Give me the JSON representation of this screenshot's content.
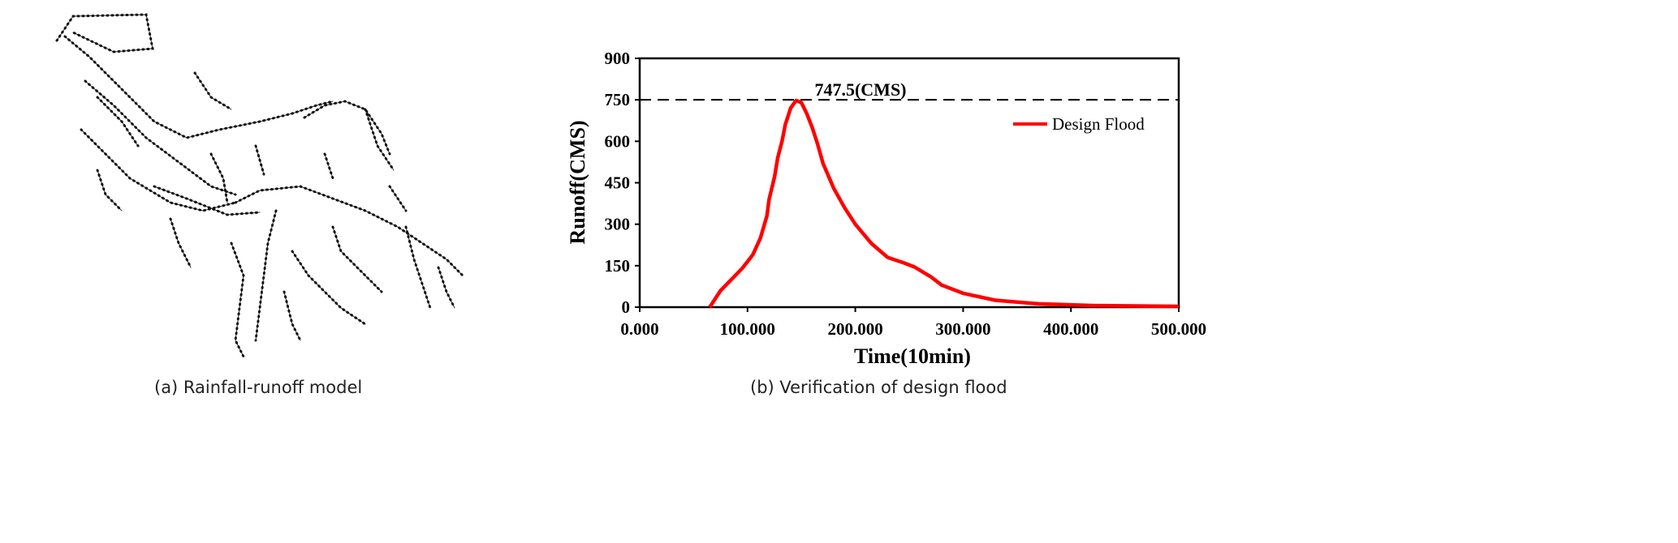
{
  "captions": {
    "left": "(a) Rainfall-runoff model",
    "right": "(b) Verification of design flood"
  },
  "network_diagram": {
    "color": "#111111"
  },
  "chart_data": {
    "type": "line",
    "xlabel": "Time(10min)",
    "ylabel": "Runoff(CMS)",
    "xlim": [
      0,
      500
    ],
    "ylim": [
      0,
      900
    ],
    "xticks": [
      "0.000",
      "100.000",
      "200.000",
      "300.000",
      "400.000",
      "500.000"
    ],
    "yticks": [
      "0",
      "150",
      "300",
      "450",
      "600",
      "750",
      "900"
    ],
    "grid": false,
    "legend_position": "top-right",
    "annotation": {
      "text": "747.5(CMS)",
      "y": 747.5,
      "line_style": "dashed"
    },
    "series": [
      {
        "name": "Design Flood",
        "color": "#ff0000",
        "x": [
          65,
          75,
          85,
          95,
          105,
          112,
          118,
          120,
          125,
          128,
          132,
          135,
          140,
          145,
          150,
          155,
          160,
          165,
          170,
          180,
          190,
          200,
          215,
          230,
          245,
          255,
          270,
          280,
          300,
          330,
          370,
          420,
          500
        ],
        "y": [
          0,
          60,
          100,
          140,
          190,
          250,
          330,
          390,
          470,
          540,
          600,
          660,
          720,
          747.5,
          740,
          700,
          650,
          590,
          520,
          430,
          360,
          300,
          230,
          180,
          160,
          145,
          110,
          80,
          50,
          25,
          12,
          6,
          3
        ]
      }
    ]
  }
}
